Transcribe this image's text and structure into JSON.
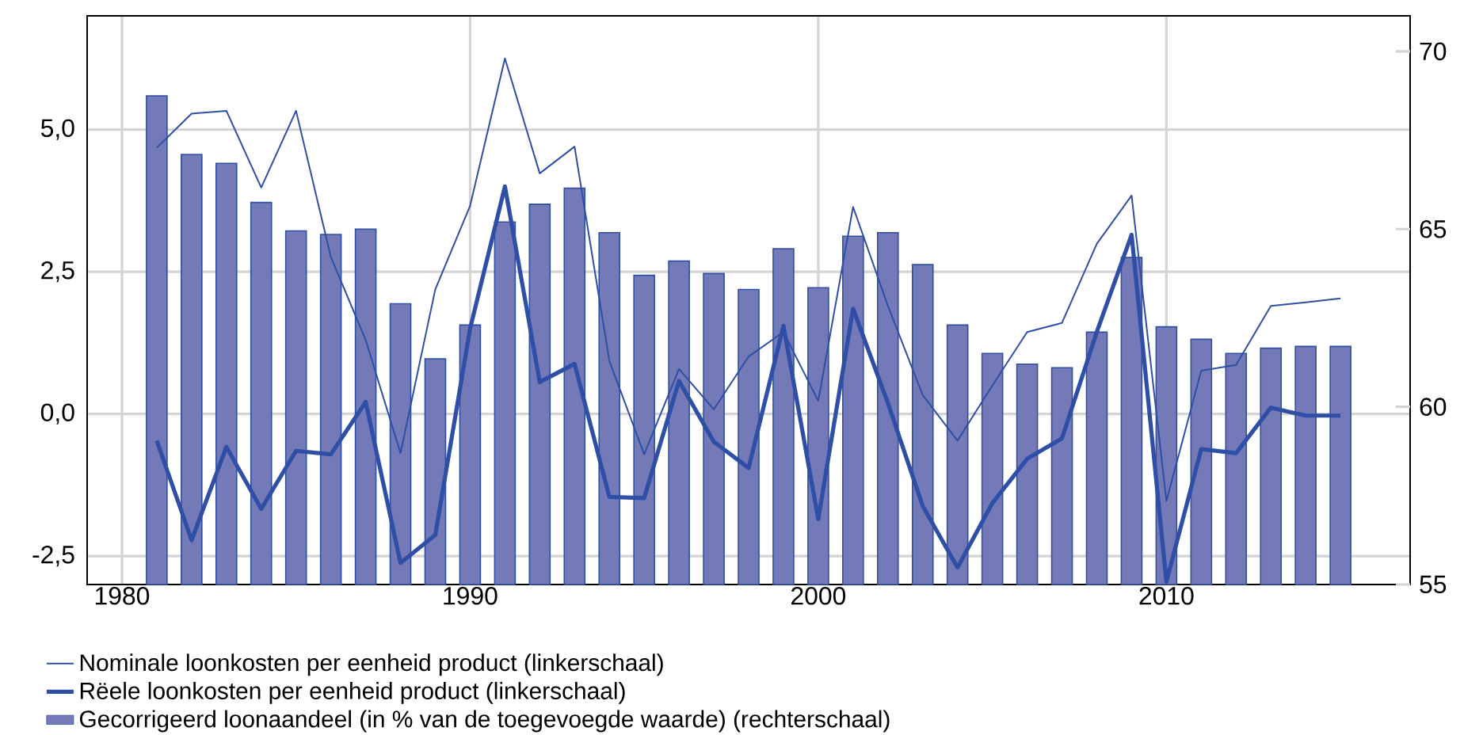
{
  "chart_data": {
    "type": "line",
    "x": [
      1981,
      1982,
      1983,
      1984,
      1985,
      1986,
      1987,
      1988,
      1989,
      1990,
      1991,
      1992,
      1993,
      1994,
      1995,
      1996,
      1997,
      1998,
      1999,
      2000,
      2001,
      2002,
      2003,
      2004,
      2005,
      2006,
      2007,
      2008,
      2009,
      2010,
      2011,
      2012,
      2013,
      2014,
      2015
    ],
    "xlim": [
      1979,
      2017
    ],
    "xticks": [
      1980,
      1990,
      2000,
      2010
    ],
    "ylim": [
      -3,
      7
    ],
    "yticks": [
      {
        "value": -2.5,
        "label": "-2,5"
      },
      {
        "value": 0,
        "label": "0,0"
      },
      {
        "value": 2.5,
        "label": "2,5"
      },
      {
        "value": 5,
        "label": "5,0"
      }
    ],
    "y2lim": [
      55,
      71
    ],
    "y2ticks": [
      55,
      60,
      65,
      70
    ],
    "grid": true,
    "legend": "bottom",
    "series": [
      {
        "name": "Nominale loonkosten per eenheid product (linkerschaal)",
        "color": "#2e4fa5",
        "values": [
          4.68,
          5.28,
          5.33,
          3.98,
          5.33,
          2.76,
          1.3,
          -0.69,
          2.19,
          3.66,
          6.25,
          4.23,
          4.7,
          0.93,
          -0.71,
          0.79,
          0.08,
          1.01,
          1.44,
          0.23,
          3.64,
          1.9,
          0.33,
          -0.47,
          0.5,
          1.44,
          1.6,
          2.99,
          3.84,
          -1.53,
          0.76,
          0.86,
          1.9,
          1.96,
          2.03
        ]
      },
      {
        "name": "Rëele loonkosten per eenheid product (linkerschaal)",
        "color": "#2e4fa5",
        "values": [
          -0.47,
          -2.22,
          -0.58,
          -1.67,
          -0.65,
          -0.71,
          0.21,
          -2.62,
          -2.13,
          1.5,
          4.0,
          0.56,
          0.88,
          -1.46,
          -1.48,
          0.58,
          -0.49,
          -0.95,
          1.55,
          -1.85,
          1.85,
          0.19,
          -1.62,
          -2.7,
          -1.57,
          -0.79,
          -0.43,
          1.44,
          3.15,
          -2.95,
          -0.62,
          -0.69,
          0.11,
          -0.03,
          -0.03
        ]
      },
      {
        "name": "Gecorrigeerd loonaandeel (in % van de toegevoegde waarde) (rechterschaal)",
        "type": "bar",
        "axis": "y2",
        "color": "#7479b8",
        "values": [
          68.75,
          67.1,
          66.85,
          65.75,
          64.95,
          64.85,
          65.0,
          62.9,
          61.35,
          62.3,
          65.2,
          65.7,
          66.15,
          64.9,
          63.7,
          64.1,
          63.75,
          63.3,
          64.45,
          63.35,
          64.8,
          64.9,
          64.0,
          62.3,
          61.5,
          61.2,
          61.1,
          62.1,
          64.2,
          62.25,
          61.9,
          61.5,
          61.65,
          61.7,
          61.7
        ]
      }
    ]
  }
}
